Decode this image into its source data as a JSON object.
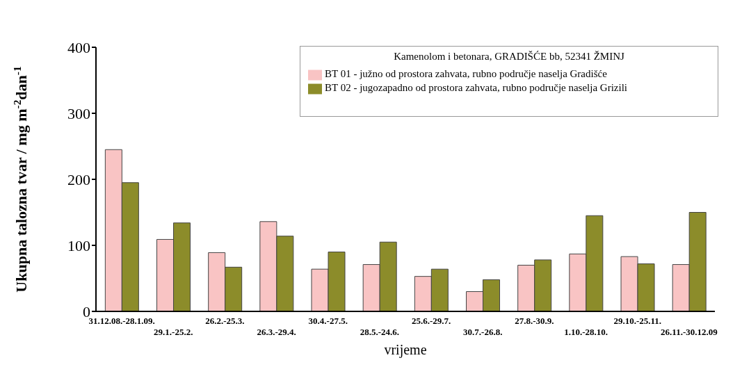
{
  "chart_data": {
    "type": "bar",
    "xlabel": "vrijeme",
    "ylabel": "Ukupna talozna tvar / mg m$^{-2}$dan$^{-1}$",
    "legend_title": "Kamenolom i betonara, GRADIŠĆE bb, 52341 ŽMINJ",
    "categories": [
      "31.12.08.-28.1.09.",
      "29.1.-25.2.",
      "26.2.-25.3.",
      "26.3.-29.4.",
      "30.4.-27.5.",
      "28.5.-24.6.",
      "25.6.-29.7.",
      "30.7.-26.8.",
      "27.8.-30.9.",
      "1.10.-28.10.",
      "29.10.-25.11.",
      "26.11.-30.12.09"
    ],
    "series": [
      {
        "name": "BT 01 - južno od prostora zahvata, rubno područje naselja Gradišće",
        "color": "#f9c4c4",
        "values": [
          245,
          109,
          89,
          136,
          64,
          71,
          53,
          30,
          70,
          87,
          83,
          71
        ]
      },
      {
        "name": "BT 02 - jugozapadno od prostora zahvata, rubno područje naselja Grizili",
        "color": "#8c8c2a",
        "values": [
          195,
          134,
          67,
          114,
          90,
          105,
          64,
          48,
          78,
          145,
          72,
          150
        ]
      }
    ],
    "ylim": [
      0,
      400
    ],
    "yticks": [
      0,
      100,
      200,
      300,
      400
    ],
    "grid": false,
    "legend": "top right"
  }
}
